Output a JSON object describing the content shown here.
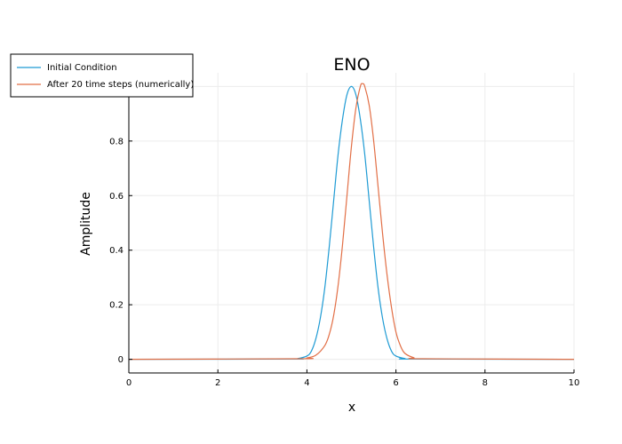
{
  "chart_data": {
    "type": "line",
    "title": "ENO",
    "xlabel": "x",
    "ylabel": "Amplitude",
    "xlim": [
      0,
      10
    ],
    "ylim": [
      -0.05,
      1.05
    ],
    "x_ticks": [
      0,
      2,
      4,
      6,
      8,
      10
    ],
    "x_tick_labels": [
      "0",
      "2",
      "4",
      "6",
      "8",
      "10"
    ],
    "y_ticks": [
      0,
      0.2,
      0.4,
      0.6,
      0.8
    ],
    "y_tick_labels": [
      "0",
      "0.2",
      "0.4",
      "0.6",
      "0.8"
    ],
    "grid": true,
    "legend_position": "top-left",
    "series": [
      {
        "name": "Initial Condition",
        "color": "#1f9bd4",
        "x": [
          0,
          3.6,
          3.8,
          4.0,
          4.1,
          4.2,
          4.3,
          4.4,
          4.5,
          4.6,
          4.7,
          4.8,
          4.9,
          5.0,
          5.1,
          5.2,
          5.3,
          5.4,
          5.5,
          5.6,
          5.7,
          5.8,
          5.9,
          6.0,
          6.2,
          6.4,
          10
        ],
        "y": [
          0,
          0.001,
          0.003,
          0.012,
          0.03,
          0.075,
          0.15,
          0.26,
          0.41,
          0.58,
          0.75,
          0.88,
          0.97,
          1.0,
          0.97,
          0.88,
          0.75,
          0.58,
          0.41,
          0.26,
          0.15,
          0.075,
          0.03,
          0.012,
          0.003,
          0.001,
          0
        ]
      },
      {
        "name": "After 20 time steps (numerically)",
        "color": "#e26f46",
        "x": [
          0,
          3.8,
          4.0,
          4.2,
          4.4,
          4.5,
          4.6,
          4.7,
          4.8,
          4.9,
          5.0,
          5.1,
          5.2,
          5.25,
          5.3,
          5.4,
          5.5,
          5.6,
          5.7,
          5.8,
          5.9,
          6.0,
          6.1,
          6.2,
          6.4,
          6.6,
          10
        ],
        "y": [
          0,
          0.002,
          0.005,
          0.015,
          0.05,
          0.09,
          0.16,
          0.27,
          0.42,
          0.6,
          0.78,
          0.92,
          1.0,
          1.01,
          1.0,
          0.93,
          0.8,
          0.63,
          0.46,
          0.31,
          0.19,
          0.1,
          0.05,
          0.022,
          0.006,
          0.002,
          0
        ]
      }
    ]
  }
}
